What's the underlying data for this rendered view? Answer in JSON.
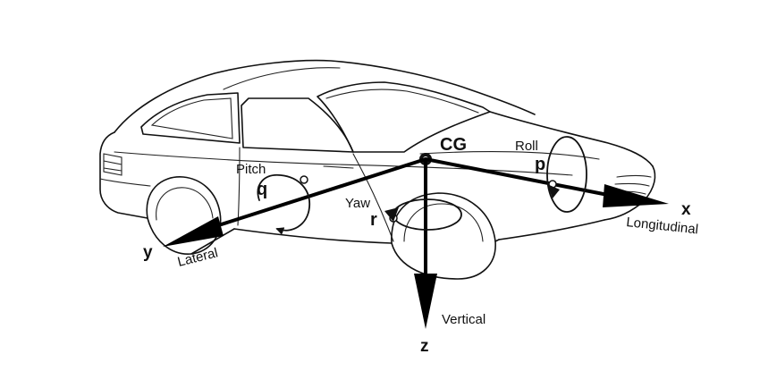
{
  "labels": {
    "cg": "CG",
    "roll": "Roll",
    "roll_symbol": "p",
    "pitch": "Pitch",
    "pitch_symbol": "q",
    "yaw": "Yaw",
    "yaw_symbol": "r",
    "x_axis": "x",
    "x_name": "Longitudinal",
    "y_axis": "y",
    "y_name": "Lateral",
    "z_axis": "z",
    "z_name": "Vertical"
  },
  "colors": {
    "ink": "#111111",
    "background": "#ffffff"
  }
}
